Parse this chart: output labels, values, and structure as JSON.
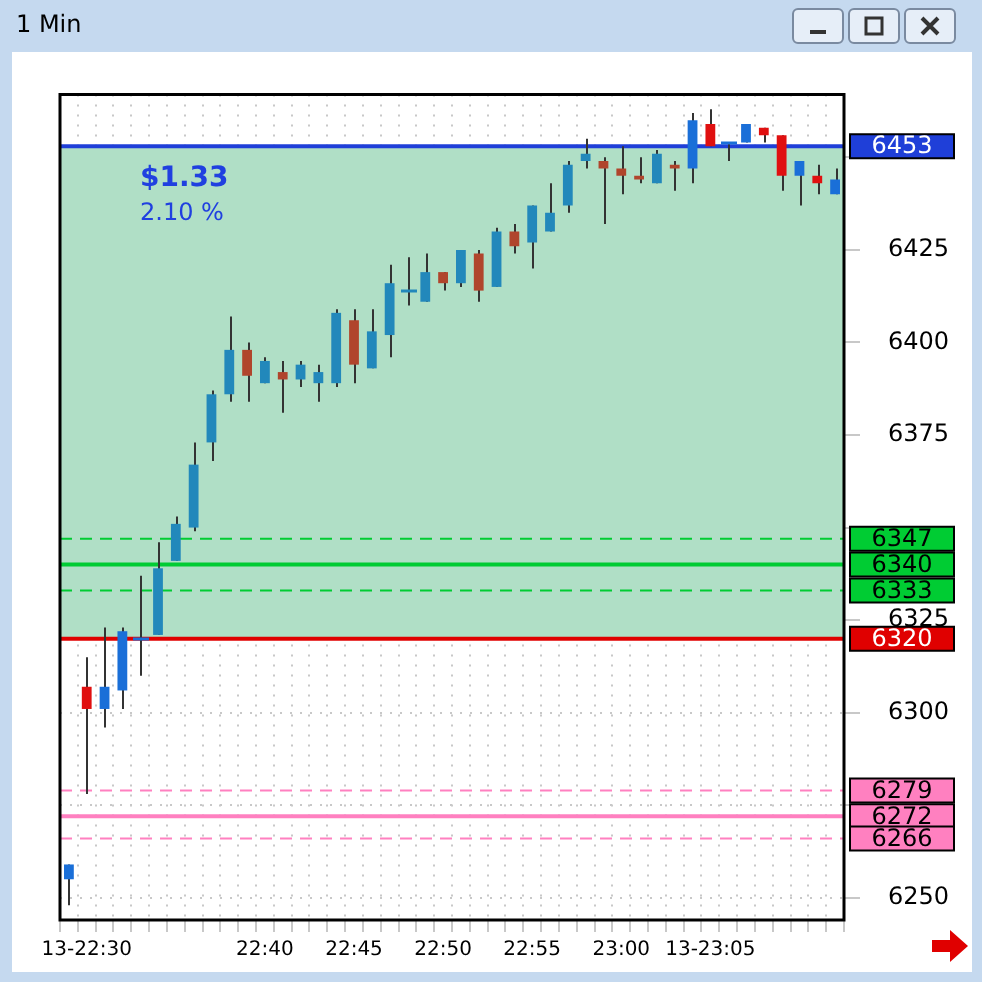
{
  "chart_data": {
    "type": "candlestick",
    "title": "1 Min",
    "categories": [
      null,
      "13-22:30",
      null,
      null,
      null,
      null,
      null,
      null,
      null,
      null,
      null,
      "22:40",
      null,
      null,
      null,
      null,
      "22:45",
      null,
      null,
      null,
      null,
      "22:50",
      null,
      null,
      null,
      null,
      "22:55",
      null,
      null,
      null,
      null,
      "23:00",
      null,
      null,
      null,
      null,
      "13-23:05",
      null,
      null,
      null,
      null,
      null,
      null,
      null
    ],
    "ohlc": [
      [
        6255,
        6259,
        6248,
        6259
      ],
      [
        6307,
        6315,
        6278,
        6301
      ],
      [
        6301,
        6323,
        6296,
        6307
      ],
      [
        6306,
        6323,
        6301,
        6322
      ],
      [
        6320,
        6337,
        6310,
        6320
      ],
      [
        6321,
        6346,
        6321,
        6339
      ],
      [
        6341,
        6353,
        6341,
        6351
      ],
      [
        6350,
        6373,
        6349,
        6367
      ],
      [
        6373,
        6387,
        6368,
        6386
      ],
      [
        6386,
        6407,
        6384,
        6398
      ],
      [
        6398,
        6400,
        6384,
        6391
      ],
      [
        6389,
        6396,
        6389,
        6395
      ],
      [
        6392,
        6395,
        6381,
        6390
      ],
      [
        6390,
        6395,
        6388,
        6394
      ],
      [
        6389,
        6394,
        6384,
        6392
      ],
      [
        6389,
        6409,
        6388,
        6408
      ],
      [
        6406,
        6409,
        6389,
        6394
      ],
      [
        6393,
        6409,
        6393,
        6403
      ],
      [
        6402,
        6421,
        6396,
        6416
      ],
      [
        6414,
        6423,
        6410,
        6414
      ],
      [
        6411,
        6424,
        6411,
        6419
      ],
      [
        6419,
        6419,
        6414,
        6416
      ],
      [
        6416,
        6425,
        6415,
        6425
      ],
      [
        6424,
        6425,
        6411,
        6414
      ],
      [
        6415,
        6431,
        6415,
        6430
      ],
      [
        6430,
        6432,
        6424,
        6426
      ],
      [
        6427,
        6437,
        6420,
        6437
      ],
      [
        6430,
        6443,
        6430,
        6435
      ],
      [
        6437,
        6449,
        6435,
        6448
      ],
      [
        6449,
        6455,
        6447,
        6451
      ],
      [
        6449,
        6450,
        6432,
        6447
      ],
      [
        6447,
        6453,
        6440,
        6445
      ],
      [
        6445,
        6450,
        6443,
        6444
      ],
      [
        6443,
        6452,
        6443,
        6451
      ],
      [
        6448,
        6449,
        6441,
        6447
      ],
      [
        6447,
        6462,
        6443,
        6460
      ],
      [
        6459,
        6463,
        6453,
        6453
      ],
      [
        6454,
        6454,
        6449,
        6454
      ],
      [
        6454,
        6459,
        6454,
        6459
      ],
      [
        6458,
        6458,
        6454,
        6456
      ],
      [
        6456,
        6456,
        6441,
        6445
      ],
      [
        6445,
        6449,
        6437,
        6449
      ],
      [
        6445,
        6448,
        6440,
        6443
      ],
      [
        6440,
        6447,
        6440,
        6444
      ]
    ],
    "colors": [
      "#1a6fd8",
      "#e01010",
      "#1a6fd8",
      "#1a6fd8",
      "#1a6fd8",
      "#2288bb",
      "#2288bb",
      "#2288bb",
      "#2288bb",
      "#2288bb",
      "#b0452c",
      "#2288bb",
      "#b0452c",
      "#2288bb",
      "#2288bb",
      "#2288bb",
      "#b0452c",
      "#2288bb",
      "#2288bb",
      "#2288bb",
      "#2288bb",
      "#b0452c",
      "#2288bb",
      "#b0452c",
      "#2288bb",
      "#b0452c",
      "#2288bb",
      "#2288bb",
      "#2288bb",
      "#2288bb",
      "#b0452c",
      "#b0452c",
      "#b0452c",
      "#2288bb",
      "#b0452c",
      "#1a6fd8",
      "#e01010",
      "#1a6fd8",
      "#1a6fd8",
      "#e01010",
      "#e01010",
      "#1a6fd8",
      "#e01010",
      "#1a6fd8"
    ],
    "ylim": [
      6244,
      6467
    ],
    "yticks": [
      6250,
      {
        "value": 6275,
        "label": null
      },
      6300,
      6325,
      {
        "value": 6350,
        "label": null
      },
      6375,
      6400,
      6425,
      {
        "value": 6450,
        "label": null
      }
    ],
    "grid": true,
    "ref_lines": [
      {
        "axis": "y",
        "value": 6453,
        "label": "6453",
        "color": "#1f3fd8",
        "line_style": "solid"
      },
      {
        "axis": "y",
        "value": 6347,
        "label": "6347",
        "color": "#00cc33",
        "line_style": "dashed"
      },
      {
        "axis": "y",
        "value": 6340,
        "label": "6340",
        "color": "#00cc33",
        "line_style": "solid"
      },
      {
        "axis": "y",
        "value": 6333,
        "label": "6333",
        "color": "#00cc33",
        "line_style": "dashed"
      },
      {
        "axis": "y",
        "value": 6320,
        "label": "6320",
        "color": "#e00000",
        "line_style": "solid"
      },
      {
        "axis": "y",
        "value": 6279,
        "label": "6279",
        "color": "#ff80c0",
        "line_style": "dashed"
      },
      {
        "axis": "y",
        "value": 6272,
        "label": "6272",
        "color": "#ff80c0",
        "line_style": "solid"
      },
      {
        "axis": "y",
        "value": 6266,
        "label": "6266",
        "color": "#ff80c0",
        "line_style": "dashed"
      }
    ],
    "bands": [
      {
        "axis": "y",
        "from": 6320,
        "to": 6453,
        "color": "#b0dfc6"
      }
    ],
    "annotations": [
      "$1.33",
      "2.10 %"
    ]
  }
}
